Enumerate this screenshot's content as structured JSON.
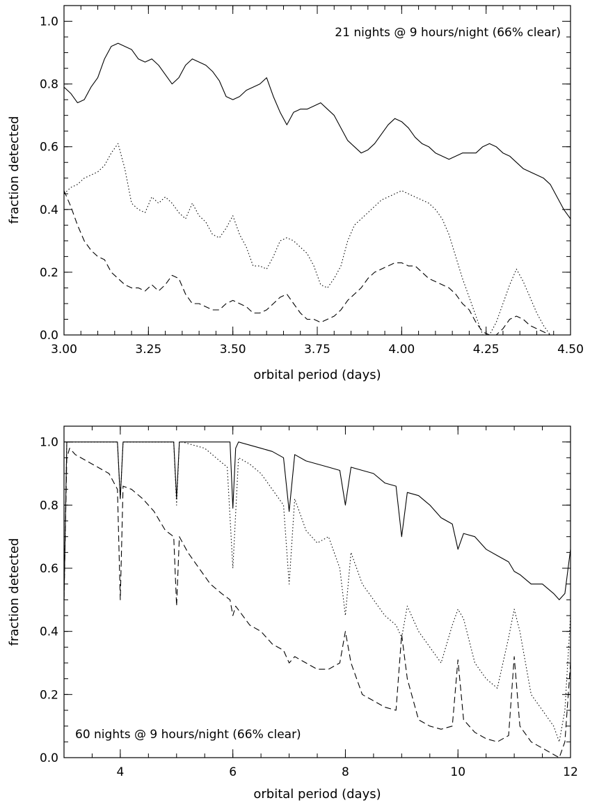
{
  "chart_data": [
    {
      "type": "line",
      "annotation": "21 nights @ 9 hours/night (66% clear)",
      "xlabel": "orbital period (days)",
      "ylabel": "fraction detected",
      "xlim": [
        3.0,
        4.5
      ],
      "ylim": [
        0.0,
        1.05
      ],
      "xticks": [
        "3.00",
        "3.25",
        "3.50",
        "3.75",
        "4.00",
        "4.25",
        "4.50"
      ],
      "xtick_values": [
        3.0,
        3.25,
        3.5,
        3.75,
        4.0,
        4.25,
        4.5
      ],
      "yticks": [
        "0.0",
        "0.2",
        "0.4",
        "0.6",
        "0.8",
        "1.0"
      ],
      "ytick_values": [
        0.0,
        0.2,
        0.4,
        0.6,
        0.8,
        1.0
      ],
      "legend": "none",
      "grid": false,
      "series": [
        {
          "style": "solid",
          "x": [
            3.0,
            3.02,
            3.04,
            3.06,
            3.08,
            3.1,
            3.12,
            3.14,
            3.16,
            3.18,
            3.2,
            3.22,
            3.24,
            3.26,
            3.28,
            3.3,
            3.32,
            3.34,
            3.36,
            3.38,
            3.4,
            3.42,
            3.44,
            3.46,
            3.48,
            3.5,
            3.52,
            3.54,
            3.56,
            3.58,
            3.6,
            3.62,
            3.64,
            3.66,
            3.68,
            3.7,
            3.72,
            3.74,
            3.76,
            3.78,
            3.8,
            3.82,
            3.84,
            3.86,
            3.88,
            3.9,
            3.92,
            3.94,
            3.96,
            3.98,
            4.0,
            4.02,
            4.04,
            4.06,
            4.08,
            4.1,
            4.12,
            4.14,
            4.16,
            4.18,
            4.2,
            4.22,
            4.24,
            4.26,
            4.28,
            4.3,
            4.32,
            4.34,
            4.36,
            4.38,
            4.4,
            4.42,
            4.44,
            4.46,
            4.48,
            4.5
          ],
          "y": [
            0.79,
            0.77,
            0.74,
            0.75,
            0.79,
            0.82,
            0.88,
            0.92,
            0.93,
            0.92,
            0.91,
            0.88,
            0.87,
            0.88,
            0.86,
            0.83,
            0.8,
            0.82,
            0.86,
            0.88,
            0.87,
            0.86,
            0.84,
            0.81,
            0.76,
            0.75,
            0.76,
            0.78,
            0.79,
            0.8,
            0.82,
            0.76,
            0.71,
            0.67,
            0.71,
            0.72,
            0.72,
            0.73,
            0.74,
            0.72,
            0.7,
            0.66,
            0.62,
            0.6,
            0.58,
            0.59,
            0.61,
            0.64,
            0.67,
            0.69,
            0.68,
            0.66,
            0.63,
            0.61,
            0.6,
            0.58,
            0.57,
            0.56,
            0.57,
            0.58,
            0.58,
            0.58,
            0.6,
            0.61,
            0.6,
            0.58,
            0.57,
            0.55,
            0.53,
            0.52,
            0.51,
            0.5,
            0.48,
            0.44,
            0.4,
            0.37
          ]
        },
        {
          "style": "dotted",
          "x": [
            3.0,
            3.02,
            3.04,
            3.06,
            3.08,
            3.1,
            3.12,
            3.14,
            3.16,
            3.18,
            3.2,
            3.22,
            3.24,
            3.26,
            3.28,
            3.3,
            3.32,
            3.34,
            3.36,
            3.38,
            3.4,
            3.42,
            3.44,
            3.46,
            3.48,
            3.5,
            3.52,
            3.54,
            3.56,
            3.58,
            3.6,
            3.62,
            3.64,
            3.66,
            3.68,
            3.7,
            3.72,
            3.74,
            3.76,
            3.78,
            3.8,
            3.82,
            3.84,
            3.86,
            3.88,
            3.9,
            3.92,
            3.94,
            3.96,
            3.98,
            4.0,
            4.02,
            4.04,
            4.06,
            4.08,
            4.1,
            4.12,
            4.14,
            4.16,
            4.18,
            4.2,
            4.22,
            4.24,
            4.26,
            4.28,
            4.3,
            4.32,
            4.34,
            4.36,
            4.38,
            4.4,
            4.42,
            4.44
          ],
          "y": [
            0.45,
            0.47,
            0.48,
            0.5,
            0.51,
            0.52,
            0.54,
            0.58,
            0.61,
            0.53,
            0.42,
            0.4,
            0.39,
            0.44,
            0.42,
            0.44,
            0.42,
            0.39,
            0.37,
            0.42,
            0.38,
            0.36,
            0.32,
            0.31,
            0.34,
            0.38,
            0.32,
            0.28,
            0.22,
            0.22,
            0.21,
            0.25,
            0.3,
            0.31,
            0.3,
            0.28,
            0.26,
            0.22,
            0.16,
            0.15,
            0.18,
            0.22,
            0.3,
            0.35,
            0.37,
            0.39,
            0.41,
            0.43,
            0.44,
            0.45,
            0.46,
            0.45,
            0.44,
            0.43,
            0.42,
            0.4,
            0.37,
            0.32,
            0.25,
            0.18,
            0.12,
            0.06,
            0.0,
            0.0,
            0.04,
            0.1,
            0.16,
            0.21,
            0.17,
            0.12,
            0.07,
            0.03,
            0.0
          ]
        },
        {
          "style": "dashed",
          "x": [
            3.0,
            3.02,
            3.04,
            3.06,
            3.08,
            3.1,
            3.12,
            3.14,
            3.16,
            3.18,
            3.2,
            3.22,
            3.24,
            3.26,
            3.28,
            3.3,
            3.32,
            3.34,
            3.36,
            3.38,
            3.4,
            3.42,
            3.44,
            3.46,
            3.48,
            3.5,
            3.52,
            3.54,
            3.56,
            3.58,
            3.6,
            3.62,
            3.64,
            3.66,
            3.68,
            3.7,
            3.72,
            3.74,
            3.76,
            3.78,
            3.8,
            3.82,
            3.84,
            3.86,
            3.88,
            3.9,
            3.92,
            3.94,
            3.96,
            3.98,
            4.0,
            4.02,
            4.04,
            4.06,
            4.08,
            4.1,
            4.12,
            4.14,
            4.16,
            4.18,
            4.2,
            4.22,
            4.24,
            4.26,
            4.28,
            4.3,
            4.32,
            4.34,
            4.36,
            4.38,
            4.4,
            4.42,
            4.44
          ],
          "y": [
            0.46,
            0.41,
            0.35,
            0.3,
            0.27,
            0.25,
            0.24,
            0.2,
            0.18,
            0.16,
            0.15,
            0.15,
            0.14,
            0.16,
            0.14,
            0.16,
            0.19,
            0.18,
            0.13,
            0.1,
            0.1,
            0.09,
            0.08,
            0.08,
            0.1,
            0.11,
            0.1,
            0.09,
            0.07,
            0.07,
            0.08,
            0.1,
            0.12,
            0.13,
            0.1,
            0.07,
            0.05,
            0.05,
            0.04,
            0.05,
            0.06,
            0.08,
            0.11,
            0.13,
            0.15,
            0.18,
            0.2,
            0.21,
            0.22,
            0.23,
            0.23,
            0.22,
            0.22,
            0.2,
            0.18,
            0.17,
            0.16,
            0.15,
            0.13,
            0.1,
            0.08,
            0.04,
            0.01,
            0.0,
            0.0,
            0.02,
            0.05,
            0.06,
            0.05,
            0.03,
            0.02,
            0.01,
            0.0
          ]
        }
      ]
    },
    {
      "type": "line",
      "annotation": "60 nights @ 9 hours/night (66% clear)",
      "xlabel": "orbital period (days)",
      "ylabel": "fraction detected",
      "xlim": [
        3,
        12
      ],
      "ylim": [
        0.0,
        1.05
      ],
      "xticks": [
        "4",
        "6",
        "8",
        "10",
        "12"
      ],
      "xtick_values": [
        4,
        6,
        8,
        10,
        12
      ],
      "yticks": [
        "0.0",
        "0.2",
        "0.4",
        "0.6",
        "0.8",
        "1.0"
      ],
      "ytick_values": [
        0.0,
        0.2,
        0.4,
        0.6,
        0.8,
        1.0
      ],
      "legend": "none",
      "grid": false,
      "series": [
        {
          "style": "solid",
          "x": [
            3.0,
            3.05,
            3.1,
            3.5,
            3.95,
            4.0,
            4.05,
            4.1,
            4.95,
            5.0,
            5.05,
            5.1,
            5.95,
            6.0,
            6.05,
            6.1,
            6.3,
            6.5,
            6.7,
            6.9,
            7.0,
            7.1,
            7.3,
            7.5,
            7.7,
            7.9,
            8.0,
            8.1,
            8.3,
            8.5,
            8.7,
            8.9,
            9.0,
            9.1,
            9.3,
            9.5,
            9.7,
            9.9,
            10.0,
            10.1,
            10.3,
            10.5,
            10.7,
            10.9,
            11.0,
            11.1,
            11.3,
            11.5,
            11.7,
            11.8,
            11.9,
            12.0
          ],
          "y": [
            0.5,
            1.0,
            1.0,
            1.0,
            1.0,
            0.82,
            1.0,
            1.0,
            1.0,
            0.82,
            1.0,
            1.0,
            1.0,
            0.79,
            0.98,
            1.0,
            0.99,
            0.98,
            0.97,
            0.95,
            0.78,
            0.96,
            0.94,
            0.93,
            0.92,
            0.91,
            0.8,
            0.92,
            0.91,
            0.9,
            0.87,
            0.86,
            0.7,
            0.84,
            0.83,
            0.8,
            0.76,
            0.74,
            0.66,
            0.71,
            0.7,
            0.66,
            0.64,
            0.62,
            0.59,
            0.58,
            0.55,
            0.55,
            0.52,
            0.5,
            0.52,
            0.66
          ]
        },
        {
          "style": "dotted",
          "x": [
            3.0,
            3.05,
            3.1,
            3.5,
            3.95,
            4.0,
            4.05,
            4.1,
            4.95,
            5.0,
            5.05,
            5.1,
            5.5,
            5.9,
            6.0,
            6.1,
            6.3,
            6.5,
            6.7,
            6.9,
            7.0,
            7.1,
            7.3,
            7.5,
            7.7,
            7.9,
            8.0,
            8.1,
            8.3,
            8.5,
            8.7,
            8.9,
            9.0,
            9.1,
            9.3,
            9.5,
            9.7,
            9.9,
            10.0,
            10.1,
            10.3,
            10.5,
            10.7,
            10.9,
            11.0,
            11.1,
            11.3,
            11.5,
            11.7,
            11.8,
            11.9,
            12.0
          ],
          "y": [
            0.5,
            1.0,
            1.0,
            1.0,
            1.0,
            0.82,
            1.0,
            1.0,
            1.0,
            0.8,
            1.0,
            1.0,
            0.98,
            0.92,
            0.6,
            0.95,
            0.93,
            0.9,
            0.85,
            0.8,
            0.55,
            0.82,
            0.72,
            0.68,
            0.7,
            0.6,
            0.45,
            0.65,
            0.55,
            0.5,
            0.45,
            0.42,
            0.38,
            0.48,
            0.4,
            0.35,
            0.3,
            0.42,
            0.47,
            0.44,
            0.3,
            0.25,
            0.22,
            0.38,
            0.47,
            0.4,
            0.2,
            0.15,
            0.1,
            0.05,
            0.15,
            0.45
          ]
        },
        {
          "style": "dashed",
          "x": [
            3.0,
            3.05,
            3.1,
            3.2,
            3.4,
            3.6,
            3.8,
            3.95,
            4.0,
            4.05,
            4.2,
            4.4,
            4.6,
            4.8,
            4.95,
            5.0,
            5.05,
            5.2,
            5.4,
            5.6,
            5.8,
            5.95,
            6.0,
            6.05,
            6.3,
            6.5,
            6.7,
            6.9,
            7.0,
            7.1,
            7.3,
            7.5,
            7.7,
            7.9,
            8.0,
            8.1,
            8.3,
            8.5,
            8.7,
            8.9,
            9.0,
            9.1,
            9.3,
            9.5,
            9.7,
            9.9,
            10.0,
            10.1,
            10.3,
            10.5,
            10.7,
            10.9,
            11.0,
            11.1,
            11.3,
            11.5,
            11.7,
            11.8,
            11.9,
            12.0
          ],
          "y": [
            0.5,
            0.95,
            0.98,
            0.96,
            0.94,
            0.92,
            0.9,
            0.85,
            0.5,
            0.86,
            0.85,
            0.82,
            0.78,
            0.72,
            0.7,
            0.48,
            0.7,
            0.65,
            0.6,
            0.55,
            0.52,
            0.5,
            0.45,
            0.48,
            0.42,
            0.4,
            0.36,
            0.34,
            0.3,
            0.32,
            0.3,
            0.28,
            0.28,
            0.3,
            0.4,
            0.3,
            0.2,
            0.18,
            0.16,
            0.15,
            0.39,
            0.25,
            0.12,
            0.1,
            0.09,
            0.1,
            0.31,
            0.12,
            0.08,
            0.06,
            0.05,
            0.07,
            0.32,
            0.1,
            0.05,
            0.03,
            0.01,
            0.0,
            0.05,
            0.3
          ]
        }
      ]
    }
  ]
}
